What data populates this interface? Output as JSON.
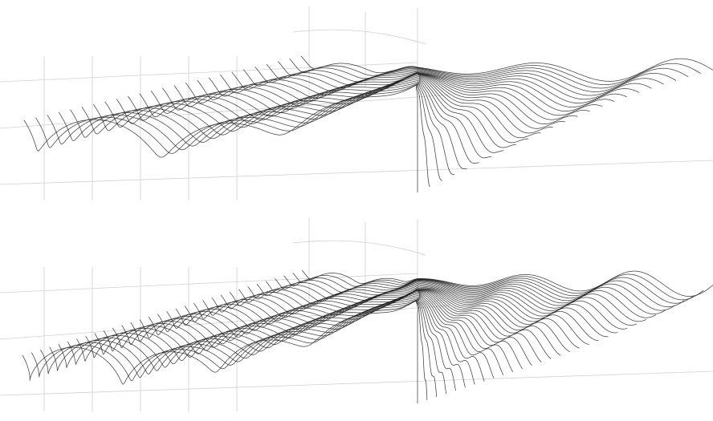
{
  "figure": {
    "description_visible_text": "",
    "panels": [
      {
        "id": "top",
        "row_count": 25,
        "near_turns": 6,
        "far_turns": 3.2,
        "wave_cycles": 4.5
      },
      {
        "id": "bottom",
        "row_count": 32,
        "near_turns": 8,
        "far_turns": 4.2,
        "wave_cycles": 6
      }
    ],
    "colors": {
      "background": "#ffffff",
      "curve": "#1e1e1e",
      "grid": "#d0d0d0"
    }
  }
}
